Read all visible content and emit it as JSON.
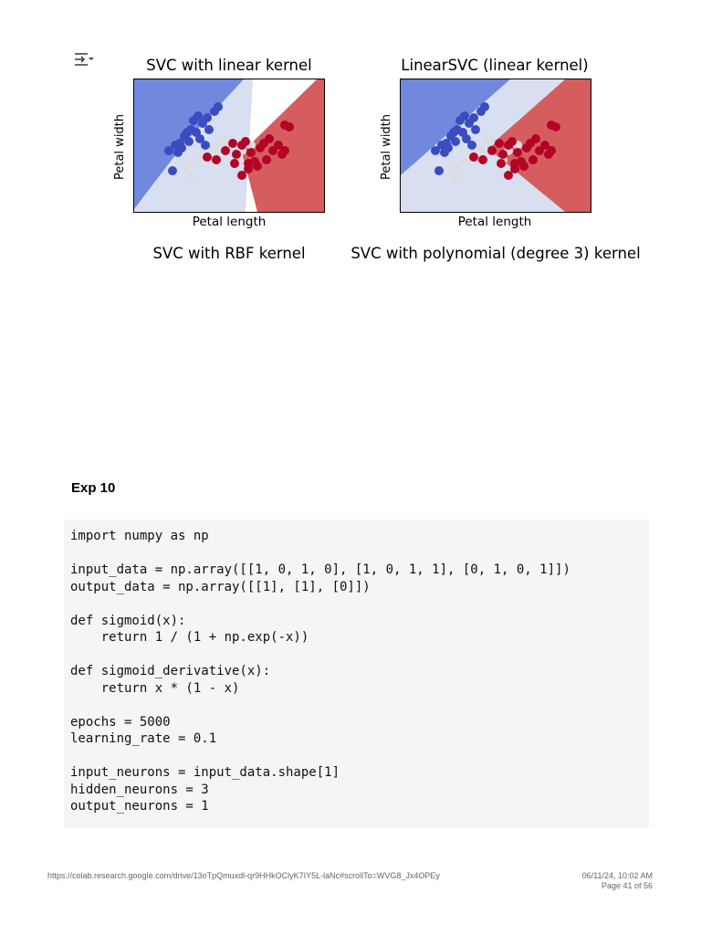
{
  "output_icon": "output-toggle-icon",
  "plots": [
    {
      "title": "SVC with linear kernel",
      "xlabel": "Petal length",
      "ylabel": "Petal width"
    },
    {
      "title": "LinearSVC (linear kernel)",
      "xlabel": "Petal length",
      "ylabel": "Petal width"
    },
    {
      "title": "SVC with RBF kernel"
    },
    {
      "title": "SVC with polynomial (degree 3) kernel"
    }
  ],
  "colors": {
    "region_class0": "#7088de",
    "region_class1": "#d8dff1",
    "region_class2": "#d55d5e",
    "point_class0": "#3a4cc0",
    "point_class1": "#dddddd",
    "point_class2": "#b40426"
  },
  "section": {
    "title": "Exp 10"
  },
  "code": "import numpy as np\n\ninput_data = np.array([[1, 0, 1, 0], [1, 0, 1, 1], [0, 1, 0, 1]])\noutput_data = np.array([[1], [1], [0]])\n\ndef sigmoid(x):\n    return 1 / (1 + np.exp(-x))\n\ndef sigmoid_derivative(x):\n    return x * (1 - x)\n\nepochs = 5000\nlearning_rate = 0.1\n\ninput_neurons = input_data.shape[1]\nhidden_neurons = 3\noutput_neurons = 1",
  "footer": {
    "url": "https://colab.research.google.com/drive/13oTpQmuxdl-qr9HHkOClyK7IY5L-laNc#scrollTo=WVG8_Jx4OPEy",
    "datetime": "06/11/24, 10:02 AM",
    "page": "Page 41 of 56"
  }
}
